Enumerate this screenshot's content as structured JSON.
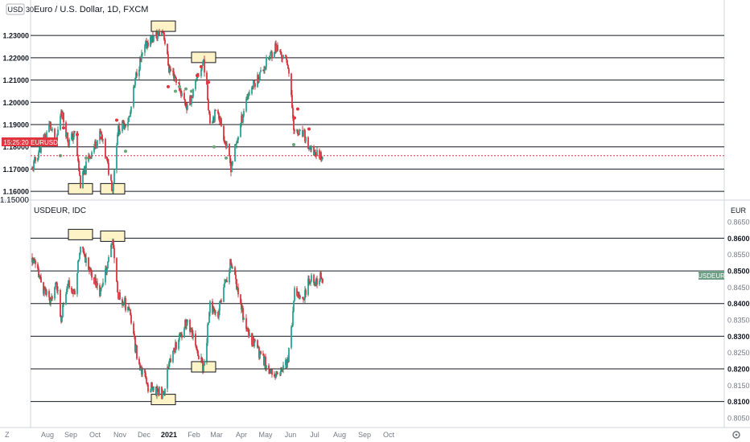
{
  "colors": {
    "up": "#26a69a",
    "up_dark": "#1f6b3a",
    "down": "#e0343f",
    "down_dark": "#b2161f",
    "level_line": "#131722",
    "box_fill": "#fdf3c7",
    "box_stroke": "#131722",
    "eur_tag": "#e0343f",
    "usdeur_tag": "#6e9e86",
    "marker_red": "#e0343f",
    "marker_green": "#6aa67a",
    "axis_text": "#787b86",
    "divider": "#d1d4dc"
  },
  "top_pane": {
    "title": "Euro / U.S. Dollar, 1D, FXCM",
    "currency_badge": "USD",
    "corner_label": "30",
    "price_tag": "1.17603",
    "time_tag": "15:25:20",
    "symbol_tag": "EURUSD",
    "level_labels": [
      "1.23000",
      "1.22000",
      "1.21000",
      "1.20000",
      "1.19000",
      "1.18000",
      "1.17000",
      "1.16000"
    ],
    "bottom_cut_label": "1.15000"
  },
  "bottom_pane": {
    "title": "USDEUR, IDC",
    "currency_label": "EUR",
    "symbol_tag": "USDEUR",
    "tick_labels": [
      "0.8650",
      "0.8600",
      "0.8550",
      "0.8500",
      "0.8450",
      "0.8400",
      "0.8350",
      "0.8300",
      "0.8250",
      "0.8200",
      "0.8150",
      "0.8100",
      "0.8050"
    ],
    "level_lines": [
      "0.8600",
      "0.8500",
      "0.8400",
      "0.8300",
      "0.8200",
      "0.8100"
    ]
  },
  "time_axis": {
    "labels": [
      "Aug",
      "Sep",
      "Oct",
      "Nov",
      "Dec",
      "2021",
      "Feb",
      "Mar",
      "Apr",
      "May",
      "Jun",
      "Jul",
      "Aug",
      "Sep",
      "Oct"
    ]
  },
  "chart_data": [
    {
      "type": "candlestick",
      "title": "Euro / U.S. Dollar, 1D, FXCM",
      "x_range": [
        "2020-07-27",
        "2021-07-23"
      ],
      "ylim": [
        1.155,
        1.238
      ],
      "horizontal_levels": [
        1.23,
        1.22,
        1.21,
        1.2,
        1.19,
        1.18,
        1.17,
        1.16
      ],
      "last_price": 1.17603,
      "series": [
        {
          "price_path": [
            [
              "2020-07-27",
              1.17
            ],
            [
              "2020-08-03",
              1.177
            ],
            [
              "2020-08-18",
              1.19
            ],
            [
              "2020-08-25",
              1.18
            ],
            [
              "2020-09-01",
              1.197
            ],
            [
              "2020-09-10",
              1.182
            ],
            [
              "2020-09-18",
              1.186
            ],
            [
              "2020-09-25",
              1.163
            ],
            [
              "2020-10-05",
              1.175
            ],
            [
              "2020-10-20",
              1.186
            ],
            [
              "2020-11-04",
              1.161
            ],
            [
              "2020-11-10",
              1.187
            ],
            [
              "2020-11-25",
              1.193
            ],
            [
              "2020-12-04",
              1.214
            ],
            [
              "2020-12-17",
              1.227
            ],
            [
              "2021-01-06",
              1.232
            ],
            [
              "2021-01-13",
              1.215
            ],
            [
              "2021-01-20",
              1.212
            ],
            [
              "2021-02-05",
              1.197
            ],
            [
              "2021-02-25",
              1.219
            ],
            [
              "2021-03-05",
              1.192
            ],
            [
              "2021-03-15",
              1.196
            ],
            [
              "2021-03-31",
              1.171
            ],
            [
              "2021-04-20",
              1.203
            ],
            [
              "2021-05-10",
              1.215
            ],
            [
              "2021-05-25",
              1.225
            ],
            [
              "2021-06-10",
              1.217
            ],
            [
              "2021-06-18",
              1.186
            ],
            [
              "2021-06-30",
              1.185
            ],
            [
              "2021-07-07",
              1.178
            ],
            [
              "2021-07-23",
              1.176
            ]
          ]
        }
      ],
      "highlight_boxes": [
        {
          "date": "2020-09-25",
          "price": 1.161
        },
        {
          "date": "2020-11-04",
          "price": 1.161
        },
        {
          "date": "2021-01-06",
          "price": 1.234
        },
        {
          "date": "2021-02-25",
          "price": 1.22
        }
      ]
    },
    {
      "type": "candlestick",
      "title": "USDEUR, IDC",
      "x_range": [
        "2020-07-27",
        "2021-07-23"
      ],
      "ylim": [
        0.8045,
        0.8665
      ],
      "horizontal_levels": [
        0.86,
        0.85,
        0.84,
        0.83,
        0.82,
        0.81
      ],
      "series": [
        {
          "price_path": [
            [
              "2020-07-27",
              0.854
            ],
            [
              "2020-08-03",
              0.849
            ],
            [
              "2020-08-18",
              0.84
            ],
            [
              "2020-08-25",
              0.847
            ],
            [
              "2020-09-01",
              0.836
            ],
            [
              "2020-09-10",
              0.846
            ],
            [
              "2020-09-18",
              0.843
            ],
            [
              "2020-09-25",
              0.859
            ],
            [
              "2020-10-05",
              0.851
            ],
            [
              "2020-10-20",
              0.843
            ],
            [
              "2020-11-04",
              0.859
            ],
            [
              "2020-11-10",
              0.843
            ],
            [
              "2020-11-25",
              0.838
            ],
            [
              "2020-12-04",
              0.824
            ],
            [
              "2020-12-17",
              0.815
            ],
            [
              "2021-01-06",
              0.812
            ],
            [
              "2021-01-13",
              0.823
            ],
            [
              "2021-01-20",
              0.826
            ],
            [
              "2021-02-05",
              0.835
            ],
            [
              "2021-02-25",
              0.82
            ],
            [
              "2021-03-05",
              0.839
            ],
            [
              "2021-03-15",
              0.837
            ],
            [
              "2021-03-31",
              0.853
            ],
            [
              "2021-04-20",
              0.831
            ],
            [
              "2021-05-10",
              0.823
            ],
            [
              "2021-05-25",
              0.817
            ],
            [
              "2021-06-10",
              0.822
            ],
            [
              "2021-06-18",
              0.843
            ],
            [
              "2021-06-30",
              0.843
            ],
            [
              "2021-07-07",
              0.847
            ],
            [
              "2021-07-23",
              0.848
            ]
          ]
        }
      ],
      "highlight_boxes": [
        {
          "date": "2020-09-25",
          "price": 0.861
        },
        {
          "date": "2020-11-04",
          "price": 0.8605
        },
        {
          "date": "2021-01-06",
          "price": 0.8105
        },
        {
          "date": "2021-02-25",
          "price": 0.8205
        }
      ]
    }
  ]
}
